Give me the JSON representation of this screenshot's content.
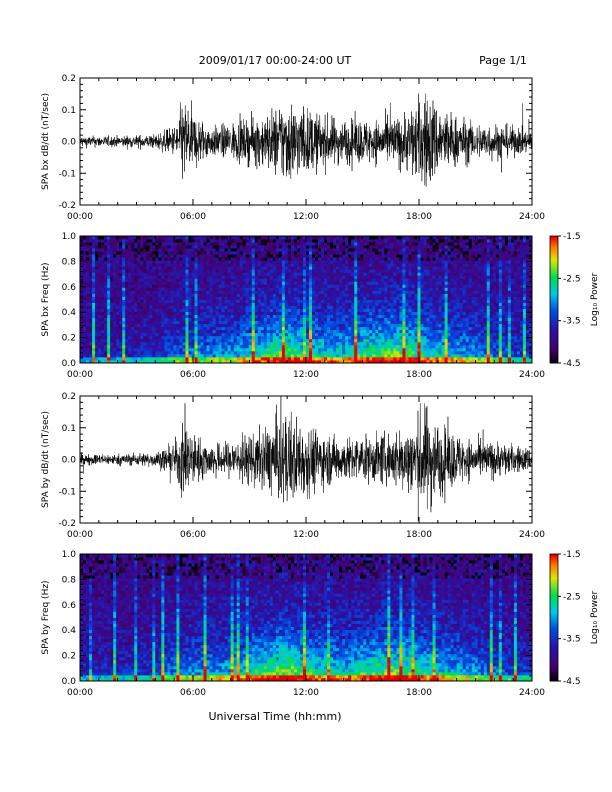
{
  "header": {
    "title": "2009/01/17  00:00-24:00 UT",
    "page": "Page 1/1"
  },
  "xlabel": "Universal Time (hh:mm)",
  "chart_data": [
    {
      "type": "line",
      "ylabel": "SPA bx dB/dt (nT/sec)",
      "xlim": [
        0,
        24
      ],
      "ylim": [
        -0.2,
        0.2
      ],
      "xticks": [
        "00:00",
        "06:00",
        "12:00",
        "18:00",
        "24:00"
      ],
      "yticks": [
        "-0.2",
        "-0.1",
        "0.0",
        "0.1",
        "0.2"
      ],
      "envelope_hours": [
        0,
        2,
        4,
        5,
        5.5,
        6,
        7,
        8,
        9,
        10,
        10.5,
        11,
        12,
        13,
        14,
        15,
        16,
        17,
        17.5,
        18,
        18.5,
        19,
        20,
        21,
        22,
        23,
        24
      ],
      "envelope_amplitude": [
        0.015,
        0.015,
        0.02,
        0.04,
        0.12,
        0.08,
        0.04,
        0.05,
        0.06,
        0.08,
        0.1,
        0.12,
        0.09,
        0.07,
        0.06,
        0.06,
        0.06,
        0.07,
        0.09,
        0.12,
        0.14,
        0.1,
        0.07,
        0.05,
        0.05,
        0.04,
        0.03
      ]
    },
    {
      "type": "heatmap",
      "ylabel": "SPA bx Freq (Hz)",
      "xlim": [
        0,
        24
      ],
      "ylim": [
        0,
        1
      ],
      "xticks": [
        "00:00",
        "06:00",
        "12:00",
        "18:00",
        "24:00"
      ],
      "yticks": [
        "0.0",
        "0.2",
        "0.4",
        "0.6",
        "0.8",
        "1.0"
      ],
      "colorbar": {
        "label": "Log₁₀ Power",
        "range": [
          -4.5,
          -1.5
        ],
        "ticks": [
          "-1.5",
          "-2.5",
          "-3.5",
          "-4.5"
        ]
      },
      "activity_hours": [
        0,
        4,
        5,
        8,
        10,
        11,
        12,
        14,
        15,
        16,
        17,
        18,
        20,
        22,
        24
      ],
      "activity_level": [
        0.1,
        0.15,
        0.3,
        0.4,
        0.6,
        0.7,
        0.55,
        0.5,
        0.6,
        0.65,
        0.7,
        0.6,
        0.45,
        0.3,
        0.2
      ]
    },
    {
      "type": "line",
      "ylabel": "SPA by dB/dt (nT/sec)",
      "xlim": [
        0,
        24
      ],
      "ylim": [
        -0.2,
        0.2
      ],
      "xticks": [
        "00:00",
        "06:00",
        "12:00",
        "18:00",
        "24:00"
      ],
      "yticks": [
        "-0.2",
        "-0.1",
        "0.0",
        "0.1",
        "0.2"
      ],
      "envelope_hours": [
        0,
        2,
        4,
        5,
        5.5,
        6,
        7,
        8,
        9,
        10,
        10.5,
        11,
        12,
        13,
        14,
        15,
        16,
        17,
        17.5,
        18,
        18.5,
        19,
        20,
        21,
        22,
        23,
        24
      ],
      "envelope_amplitude": [
        0.015,
        0.015,
        0.02,
        0.04,
        0.12,
        0.07,
        0.04,
        0.05,
        0.07,
        0.09,
        0.12,
        0.13,
        0.1,
        0.07,
        0.06,
        0.06,
        0.07,
        0.08,
        0.1,
        0.13,
        0.15,
        0.1,
        0.07,
        0.05,
        0.05,
        0.04,
        0.03
      ]
    },
    {
      "type": "heatmap",
      "ylabel": "SPA by Freq (Hz)",
      "xlim": [
        0,
        24
      ],
      "ylim": [
        0,
        1
      ],
      "xticks": [
        "00:00",
        "06:00",
        "12:00",
        "18:00",
        "24:00"
      ],
      "yticks": [
        "0.0",
        "0.2",
        "0.4",
        "0.6",
        "0.8",
        "1.0"
      ],
      "colorbar": {
        "label": "Log₁₀ Power",
        "range": [
          -4.5,
          -1.5
        ],
        "ticks": [
          "-1.5",
          "-2.5",
          "-3.5",
          "-4.5"
        ]
      },
      "activity_hours": [
        0,
        4,
        5,
        8,
        10,
        11,
        12,
        14,
        15,
        16,
        17,
        18,
        20,
        22,
        24
      ],
      "activity_level": [
        0.15,
        0.2,
        0.35,
        0.45,
        0.65,
        0.75,
        0.6,
        0.5,
        0.6,
        0.65,
        0.7,
        0.6,
        0.45,
        0.3,
        0.2
      ]
    }
  ]
}
